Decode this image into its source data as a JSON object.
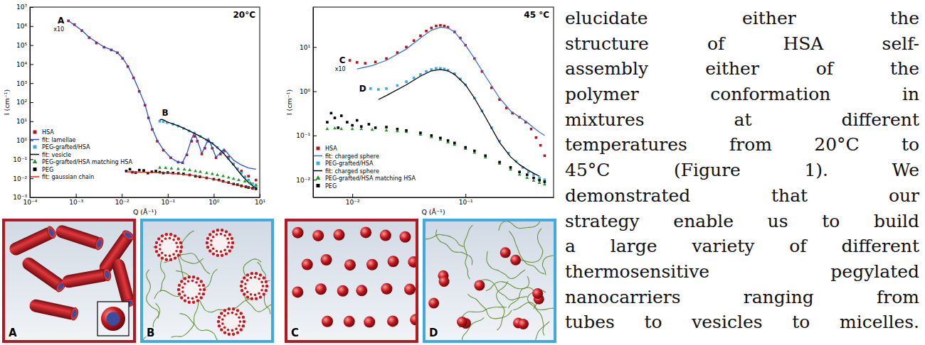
{
  "chart_data": [
    {
      "type": "scatter",
      "title": "20°C",
      "x_label": "Q (Å⁻¹)",
      "y_label": "I (cm⁻¹)",
      "log": true,
      "legend": "lower left",
      "xlim": [
        0.0001,
        10
      ],
      "xticks": [
        {
          "value": 0.0001,
          "label": "10⁻⁴"
        },
        {
          "value": 0.001,
          "label": "10⁻³"
        },
        {
          "value": 0.01,
          "label": "10⁻²"
        },
        {
          "value": 0.1,
          "label": "10⁻¹"
        },
        {
          "value": 1,
          "label": "10⁰"
        },
        {
          "value": 10,
          "label": "10¹"
        }
      ],
      "ylim": [
        0.001,
        10000000
      ],
      "yticks": [
        {
          "value": 0.001,
          "label": "10⁻³"
        },
        {
          "value": 0.01,
          "label": "10⁻²"
        },
        {
          "value": 0.1,
          "label": "10⁻¹"
        },
        {
          "value": 1,
          "label": "10⁰"
        },
        {
          "value": 10,
          "label": "10¹"
        },
        {
          "value": 100,
          "label": "10²"
        },
        {
          "value": 1000,
          "label": "10³"
        },
        {
          "value": 10000,
          "label": "10⁴"
        },
        {
          "value": 100000,
          "label": "10⁵"
        },
        {
          "value": 1000000,
          "label": "10⁶"
        },
        {
          "value": 10000000,
          "label": "10⁷"
        }
      ],
      "series": [
        {
          "name": "HSA",
          "type": "scatter",
          "marker": "square",
          "color": "#b3141c",
          "annotation": "A",
          "annotation_scale": "x10",
          "x": [
            0.00069,
            0.00093,
            0.00135,
            0.00195,
            0.0028,
            0.0041,
            0.0059,
            0.008,
            0.0104,
            0.0135,
            0.018,
            0.024,
            0.032,
            0.038,
            0.046,
            0.059,
            0.08,
            0.116,
            0.168,
            0.21,
            0.26,
            0.33,
            0.38,
            0.44,
            0.55,
            0.64,
            0.77,
            0.93,
            1.12,
            1.4,
            1.68,
            2.1,
            2.7,
            4.0,
            5.7,
            8.3
          ],
          "values": [
            1900000,
            1200000,
            580000,
            250000,
            130000,
            78000,
            56000,
            40000,
            20000,
            7500,
            1900,
            370,
            69,
            15,
            3.7,
            0.89,
            0.3,
            0.12,
            0.071,
            0.066,
            0.17,
            0.89,
            1.6,
            0.89,
            0.19,
            0.38,
            0.89,
            0.38,
            0.12,
            0.19,
            0.27,
            0.13,
            0.056,
            0.024,
            0.013,
            0.0081
          ]
        },
        {
          "name": "fit: lamellae",
          "type": "line",
          "color": "#2e4fd1",
          "x": [
            0.00069,
            0.00135,
            0.00195,
            0.0041,
            0.0059,
            0.008,
            0.0104,
            0.0135,
            0.018,
            0.024,
            0.032,
            0.038,
            0.046,
            0.059,
            0.08,
            0.116,
            0.168,
            0.21,
            0.26,
            0.33,
            0.38,
            0.44,
            0.55,
            0.64,
            0.77,
            0.93,
            1.12,
            1.4,
            1.68,
            2.1,
            2.7,
            4.0,
            5.7,
            8.3
          ],
          "values": [
            1900000,
            600000,
            260000,
            80000,
            57000,
            41000,
            21000,
            8000,
            2000,
            400,
            75,
            16,
            4,
            1.0,
            0.32,
            0.12,
            0.07,
            0.07,
            0.2,
            1.2,
            2.6,
            1.0,
            0.2,
            0.45,
            1.2,
            0.4,
            0.13,
            0.22,
            0.35,
            0.18,
            0.09,
            0.05,
            0.035,
            0.03
          ]
        },
        {
          "name": "PEG-grafted/HSA",
          "type": "scatter",
          "marker": "square",
          "color": "#35aee6",
          "annotation": "B",
          "x": [
            0.067,
            0.08,
            0.097,
            0.13,
            0.168,
            0.22,
            0.29,
            0.38,
            0.51,
            0.7,
            0.93,
            1.2,
            1.6,
            2.1,
            2.7,
            3.3,
            4.0,
            4.8,
            5.7,
            7.0,
            8.3
          ],
          "values": [
            10,
            9.5,
            8.5,
            7,
            5.6,
            4.2,
            3.1,
            2.3,
            1.6,
            1.05,
            0.69,
            0.42,
            0.23,
            0.11,
            0.056,
            0.032,
            0.019,
            0.012,
            0.0081,
            0.0052,
            0.0035
          ]
        },
        {
          "name": "fit: vesicle",
          "type": "line",
          "color": "#000000",
          "x": [
            0.067,
            0.075,
            0.085,
            0.097,
            0.13,
            0.168,
            0.29,
            0.51,
            0.93,
            1.6,
            2.7,
            4.0,
            5.7,
            8.3
          ],
          "values": [
            12,
            12.5,
            11,
            9.2,
            7.2,
            5.8,
            3.2,
            1.6,
            0.7,
            0.22,
            0.05,
            0.015,
            0.006,
            0.003
          ]
        },
        {
          "name": "PEG-grafted/HSA matching HSA",
          "type": "scatter",
          "marker": "triangle",
          "color": "#1e9a2a",
          "x": [
            0.067,
            0.09,
            0.12,
            0.168,
            0.23,
            0.3,
            0.4,
            0.51,
            0.7,
            0.93,
            1.2,
            1.6,
            2.1,
            2.7,
            3.5,
            4.75,
            6.2,
            8.3
          ],
          "values": [
            0.036,
            0.035,
            0.033,
            0.031,
            0.029,
            0.027,
            0.024,
            0.022,
            0.019,
            0.017,
            0.015,
            0.013,
            0.011,
            0.0095,
            0.0082,
            0.0069,
            0.0056,
            0.0045
          ]
        },
        {
          "name": "PEG",
          "type": "scatter",
          "marker": "square",
          "color": "#000000",
          "x": [
            0.0125,
            0.015,
            0.017,
            0.02,
            0.024,
            0.03,
            0.037,
            0.045,
            0.055,
            0.067,
            0.08,
            0.1,
            0.13,
            0.17,
            0.22,
            0.3,
            0.4,
            0.5,
            0.7,
            1.0,
            1.3,
            1.6,
            2.1,
            2.7,
            3.3,
            4.0,
            5.0,
            5.7,
            7.0,
            8.3
          ],
          "values": [
            0.024,
            0.03,
            0.021,
            0.02,
            0.027,
            0.026,
            0.019,
            0.022,
            0.024,
            0.021,
            0.019,
            0.02,
            0.019,
            0.018,
            0.017,
            0.015,
            0.013,
            0.012,
            0.0105,
            0.009,
            0.0082,
            0.007,
            0.006,
            0.005,
            0.0046,
            0.004,
            0.0036,
            0.0033,
            0.003,
            0.0028
          ]
        },
        {
          "name": "fit: gaussian chain",
          "type": "line",
          "color": "#e8251f",
          "x": [
            0.0125,
            0.03,
            0.1,
            0.3,
            1.0,
            2.7,
            8.3
          ],
          "values": [
            0.022,
            0.021,
            0.019,
            0.015,
            0.009,
            0.005,
            0.0027
          ]
        }
      ]
    },
    {
      "type": "scatter",
      "title": "45 °C",
      "x_label": "Q (Å⁻¹)",
      "y_label": "I (cm⁻¹)",
      "log": true,
      "legend": "lower left",
      "xlim": [
        0.0045,
        0.6
      ],
      "xticks": [
        {
          "value": 0.01,
          "label": "10⁻²"
        },
        {
          "value": 0.1,
          "label": "10⁻¹"
        }
      ],
      "ylim": [
        0.004,
        80
      ],
      "yticks": [
        {
          "value": 0.01,
          "label": "10⁻²"
        },
        {
          "value": 0.1,
          "label": "10⁻¹"
        },
        {
          "value": 1,
          "label": "10⁰"
        },
        {
          "value": 10,
          "label": "10¹"
        }
      ],
      "series": [
        {
          "name": "HSA",
          "type": "scatter",
          "marker": "square",
          "color": "#b3141c",
          "annotation": "C",
          "annotation_scale": "x10",
          "x": [
            0.0095,
            0.011,
            0.013,
            0.016,
            0.02,
            0.025,
            0.03,
            0.035,
            0.04,
            0.045,
            0.05,
            0.055,
            0.06,
            0.065,
            0.07,
            0.08,
            0.09,
            0.1,
            0.12,
            0.14,
            0.17,
            0.2,
            0.23,
            0.26,
            0.3,
            0.34,
            0.38,
            0.42,
            0.46,
            0.5
          ],
          "values": [
            5.0,
            4.5,
            4.3,
            4.6,
            5.5,
            7.5,
            10,
            14,
            18,
            23,
            27,
            30,
            31,
            30,
            28,
            22,
            16,
            11,
            5.5,
            2.8,
            1.2,
            0.65,
            0.42,
            0.32,
            0.26,
            0.2,
            0.14,
            0.09,
            0.06,
            0.035
          ]
        },
        {
          "name": "fit: charged sphere",
          "type": "line",
          "color": "#3d6fd8",
          "x": [
            0.011,
            0.015,
            0.02,
            0.03,
            0.04,
            0.05,
            0.06,
            0.07,
            0.08,
            0.1,
            0.12,
            0.15,
            0.2,
            0.25,
            0.3,
            0.35,
            0.4,
            0.45,
            0.5
          ],
          "values": [
            3.2,
            3.8,
            5.0,
            9.0,
            16,
            24,
            28,
            27,
            22,
            11,
            5.5,
            2.2,
            0.7,
            0.36,
            0.26,
            0.2,
            0.15,
            0.12,
            0.1
          ]
        },
        {
          "name": "PEG-grafted/HSA",
          "type": "scatter",
          "marker": "square",
          "color": "#35aee6",
          "annotation": "D",
          "x": [
            0.0145,
            0.017,
            0.02,
            0.025,
            0.03,
            0.035,
            0.04,
            0.045,
            0.05,
            0.055,
            0.06,
            0.065,
            0.07,
            0.08,
            0.09,
            0.1,
            0.12,
            0.14,
            0.17,
            0.2,
            0.24,
            0.28,
            0.32,
            0.36,
            0.4,
            0.45,
            0.5
          ],
          "values": [
            1.15,
            1.1,
            1.15,
            1.35,
            1.65,
            2.0,
            2.4,
            2.8,
            3.1,
            3.3,
            3.3,
            3.2,
            3.0,
            2.5,
            1.9,
            1.4,
            0.7,
            0.36,
            0.15,
            0.075,
            0.04,
            0.026,
            0.019,
            0.015,
            0.013,
            0.011,
            0.01
          ]
        },
        {
          "name": "fit: charged sphere",
          "type": "line",
          "color": "#000000",
          "x": [
            0.017,
            0.02,
            0.03,
            0.04,
            0.05,
            0.06,
            0.07,
            0.08,
            0.1,
            0.12,
            0.15,
            0.2,
            0.25,
            0.3,
            0.35,
            0.4,
            0.45
          ],
          "values": [
            0.65,
            0.8,
            1.4,
            2.2,
            2.9,
            3.1,
            2.9,
            2.4,
            1.4,
            0.7,
            0.26,
            0.07,
            0.033,
            0.022,
            0.017,
            0.014,
            0.012
          ]
        },
        {
          "name": "PEG-grafted/HSA matching HSA",
          "type": "scatter",
          "marker": "triangle",
          "color": "#1e9a2a",
          "x": [
            0.006,
            0.007,
            0.008,
            0.01,
            0.012,
            0.015,
            0.02,
            0.025,
            0.03,
            0.04,
            0.05,
            0.06,
            0.07,
            0.08,
            0.1,
            0.12,
            0.15,
            0.2,
            0.25,
            0.3,
            0.35,
            0.4,
            0.45,
            0.5
          ],
          "values": [
            0.14,
            0.145,
            0.14,
            0.14,
            0.14,
            0.135,
            0.13,
            0.125,
            0.12,
            0.105,
            0.092,
            0.08,
            0.07,
            0.062,
            0.05,
            0.041,
            0.032,
            0.023,
            0.017,
            0.013,
            0.011,
            0.0095,
            0.0085,
            0.0078
          ]
        },
        {
          "name": "PEG",
          "type": "scatter",
          "marker": "square",
          "color": "#000000",
          "x": [
            0.006,
            0.0065,
            0.007,
            0.0075,
            0.008,
            0.009,
            0.01,
            0.011,
            0.012,
            0.014,
            0.016,
            0.02,
            0.025,
            0.03,
            0.04,
            0.05,
            0.06,
            0.07,
            0.08,
            0.1,
            0.12,
            0.15,
            0.2,
            0.25,
            0.3,
            0.35,
            0.4,
            0.45,
            0.5
          ],
          "values": [
            0.2,
            0.32,
            0.25,
            0.15,
            0.28,
            0.2,
            0.17,
            0.22,
            0.16,
            0.18,
            0.15,
            0.155,
            0.14,
            0.13,
            0.115,
            0.1,
            0.088,
            0.077,
            0.068,
            0.054,
            0.045,
            0.035,
            0.025,
            0.019,
            0.015,
            0.013,
            0.011,
            0.0098,
            0.009
          ]
        }
      ]
    }
  ],
  "illustrations": [
    {
      "label": "A",
      "color": "#b3191f"
    },
    {
      "label": "B",
      "color": "#3fa9e0"
    },
    {
      "label": "C",
      "color": "#b3191f"
    },
    {
      "label": "D",
      "color": "#3fa9e0"
    }
  ],
  "paragraph": {
    "lines": [
      "elucidate either the",
      "structure of HSA self-",
      "assembly either of the",
      "polymer conformation in",
      "mixtures at different",
      "temperatures from 20°C to",
      "45°C (Figure 1). We",
      "demonstrated that our",
      "strategy enable us to build",
      "a large variety of different",
      "thermosensitive pegylated",
      "nanocarriers ranging from",
      "tubes to vesicles to micelles."
    ]
  }
}
